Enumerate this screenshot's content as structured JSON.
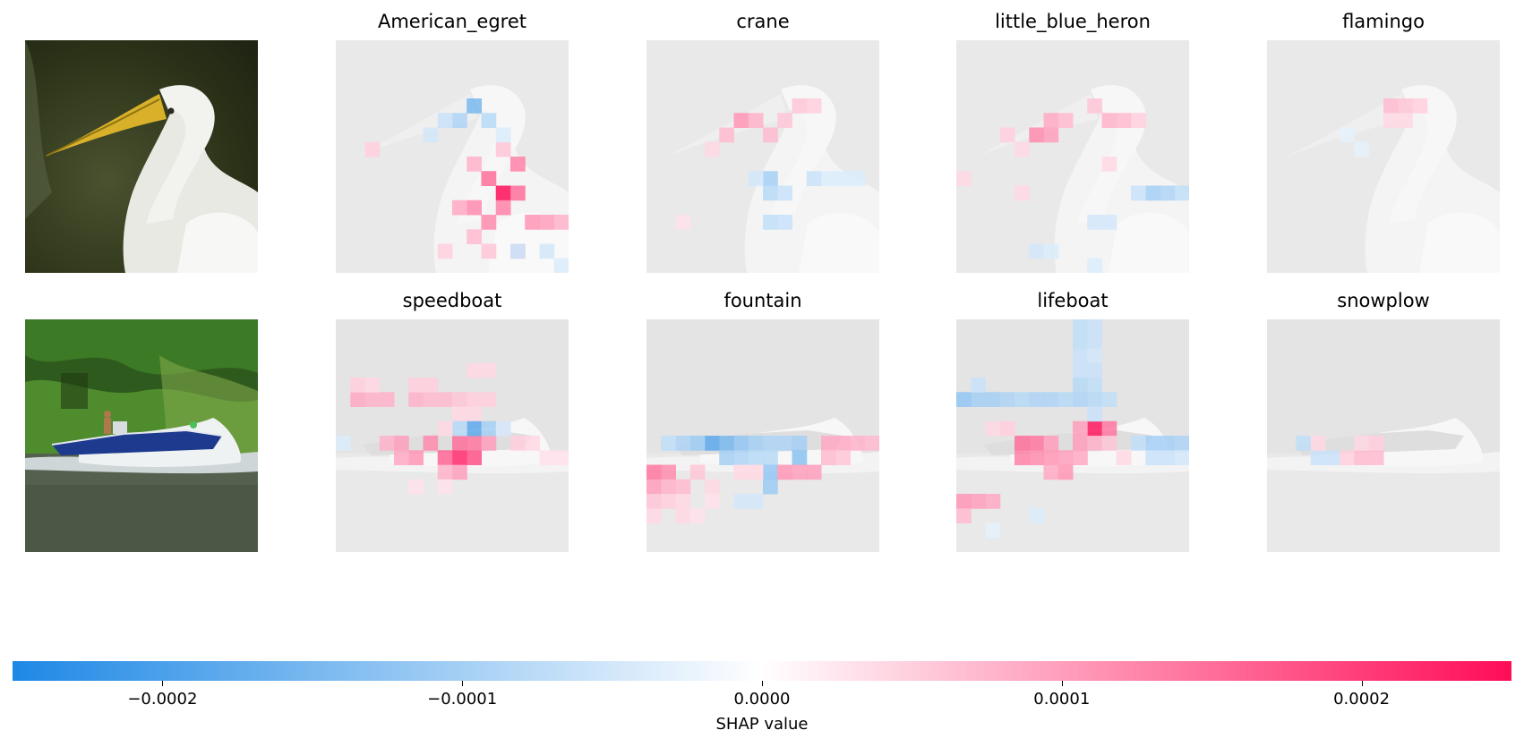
{
  "chart_data": {
    "type": "heatmap",
    "description_rows": [
      {
        "input": "egret photo",
        "classes": [
          "American_egret",
          "crane",
          "little_blue_heron",
          "flamingo"
        ]
      },
      {
        "input": "speedboat photo",
        "classes": [
          "speedboat",
          "fountain",
          "lifeboat",
          "snowplow"
        ]
      }
    ],
    "grid_size": 16,
    "colorbar": {
      "label": "SHAP value",
      "range": [
        -0.00025,
        0.00025
      ],
      "ticks": [
        -0.0002,
        -0.0001,
        0.0,
        0.0001,
        0.0002
      ],
      "tick_labels": [
        "−0.0002",
        "−0.0001",
        "0.0000",
        "0.0001",
        "0.0002"
      ],
      "negative_color": "#1E88E5",
      "positive_color": "#FF0D57"
    },
    "hotspots": {
      "American_egret": [
        [
          11,
          10,
          2.5
        ],
        [
          10,
          9,
          1.5
        ],
        [
          12,
          8,
          1.3
        ],
        [
          9,
          11,
          1.2
        ],
        [
          13,
          12,
          1.1
        ],
        [
          10,
          12,
          1.2
        ],
        [
          11,
          11,
          1.3
        ],
        [
          12,
          10,
          1.5
        ],
        [
          8,
          11,
          0.9
        ],
        [
          14,
          12,
          1.0
        ],
        [
          15,
          12,
          0.8
        ],
        [
          9,
          8,
          0.8
        ],
        [
          11,
          7,
          0.6
        ],
        [
          2,
          7,
          0.5
        ],
        [
          9,
          13,
          0.7
        ],
        [
          10,
          14,
          0.6
        ],
        [
          12,
          14,
          0.6
        ],
        [
          7,
          14,
          0.5
        ],
        [
          9,
          4,
          -1.5
        ],
        [
          8,
          5,
          -0.9
        ],
        [
          10,
          5,
          -0.8
        ],
        [
          7,
          5,
          -0.6
        ],
        [
          6,
          6,
          -0.5
        ],
        [
          11,
          6,
          -0.4
        ],
        [
          12,
          14,
          -0.6
        ],
        [
          14,
          14,
          -0.5
        ],
        [
          15,
          15,
          -0.4
        ]
      ],
      "crane": [
        [
          6,
          5,
          1.1
        ],
        [
          7,
          5,
          0.8
        ],
        [
          5,
          6,
          0.7
        ],
        [
          8,
          6,
          0.7
        ],
        [
          10,
          4,
          0.6
        ],
        [
          11,
          4,
          0.5
        ],
        [
          9,
          5,
          0.6
        ],
        [
          4,
          7,
          0.4
        ],
        [
          8,
          9,
          -1.0
        ],
        [
          8,
          10,
          -0.8
        ],
        [
          9,
          10,
          -0.6
        ],
        [
          8,
          12,
          -0.7
        ],
        [
          9,
          12,
          -0.6
        ],
        [
          7,
          9,
          -0.5
        ],
        [
          11,
          9,
          -0.6
        ],
        [
          12,
          9,
          -0.4
        ],
        [
          14,
          9,
          -0.4
        ],
        [
          13,
          9,
          -0.4
        ],
        [
          2,
          12,
          0.3
        ]
      ],
      "little_blue_heron": [
        [
          5,
          6,
          1.2
        ],
        [
          6,
          6,
          1.0
        ],
        [
          6,
          5,
          0.9
        ],
        [
          7,
          5,
          0.7
        ],
        [
          10,
          5,
          0.8
        ],
        [
          11,
          5,
          0.7
        ],
        [
          9,
          4,
          0.6
        ],
        [
          12,
          5,
          0.5
        ],
        [
          3,
          6,
          0.5
        ],
        [
          4,
          7,
          0.4
        ],
        [
          0,
          9,
          0.4
        ],
        [
          4,
          10,
          0.4
        ],
        [
          13,
          10,
          -1.0
        ],
        [
          14,
          10,
          -0.9
        ],
        [
          15,
          10,
          -0.7
        ],
        [
          12,
          10,
          -0.6
        ],
        [
          9,
          12,
          -0.5
        ],
        [
          10,
          12,
          -0.5
        ],
        [
          5,
          14,
          -0.5
        ],
        [
          6,
          14,
          -0.4
        ],
        [
          9,
          15,
          -0.4
        ],
        [
          10,
          8,
          0.4
        ]
      ],
      "flamingo": [
        [
          8,
          4,
          0.7
        ],
        [
          9,
          4,
          0.6
        ],
        [
          10,
          4,
          0.5
        ],
        [
          8,
          5,
          0.4
        ],
        [
          9,
          5,
          0.4
        ],
        [
          5,
          6,
          -0.3
        ],
        [
          6,
          7,
          -0.3
        ]
      ],
      "speedboat": [
        [
          8,
          9,
          2.2
        ],
        [
          9,
          9,
          1.8
        ],
        [
          7,
          9,
          1.6
        ],
        [
          8,
          8,
          1.5
        ],
        [
          9,
          8,
          1.4
        ],
        [
          6,
          8,
          1.2
        ],
        [
          5,
          9,
          1.1
        ],
        [
          10,
          8,
          1.0
        ],
        [
          4,
          8,
          1.0
        ],
        [
          3,
          8,
          0.8
        ],
        [
          4,
          9,
          0.9
        ],
        [
          1,
          5,
          0.9
        ],
        [
          2,
          5,
          0.8
        ],
        [
          3,
          5,
          0.8
        ],
        [
          5,
          5,
          0.8
        ],
        [
          6,
          5,
          0.7
        ],
        [
          7,
          5,
          0.7
        ],
        [
          8,
          5,
          0.6
        ],
        [
          9,
          5,
          0.5
        ],
        [
          10,
          5,
          0.5
        ],
        [
          5,
          4,
          0.5
        ],
        [
          6,
          4,
          0.5
        ],
        [
          9,
          3,
          0.4
        ],
        [
          10,
          3,
          0.4
        ],
        [
          1,
          4,
          0.5
        ],
        [
          2,
          4,
          0.4
        ],
        [
          8,
          6,
          0.4
        ],
        [
          9,
          6,
          0.4
        ],
        [
          11,
          7,
          0.4
        ],
        [
          12,
          8,
          0.5
        ],
        [
          13,
          8,
          0.4
        ],
        [
          14,
          9,
          0.3
        ],
        [
          15,
          9,
          0.3
        ],
        [
          8,
          10,
          1.0
        ],
        [
          7,
          10,
          0.8
        ],
        [
          9,
          7,
          -1.8
        ],
        [
          10,
          7,
          -1.0
        ],
        [
          8,
          7,
          -0.8
        ],
        [
          11,
          7,
          -0.5
        ],
        [
          0,
          8,
          -0.4
        ],
        [
          7,
          7,
          0.4
        ],
        [
          5,
          11,
          0.3
        ],
        [
          7,
          11,
          0.3
        ]
      ],
      "fountain": [
        [
          4,
          8,
          -1.8
        ],
        [
          5,
          8,
          -1.5
        ],
        [
          6,
          8,
          -1.2
        ],
        [
          3,
          8,
          -1.1
        ],
        [
          2,
          8,
          -0.9
        ],
        [
          1,
          8,
          -0.7
        ],
        [
          7,
          8,
          -1.0
        ],
        [
          8,
          8,
          -0.9
        ],
        [
          9,
          8,
          -0.9
        ],
        [
          10,
          8,
          -1.0
        ],
        [
          5,
          9,
          -1.0
        ],
        [
          6,
          9,
          -0.9
        ],
        [
          7,
          9,
          -0.8
        ],
        [
          8,
          9,
          -0.8
        ],
        [
          8,
          10,
          -1.2
        ],
        [
          8,
          11,
          -1.1
        ],
        [
          10,
          9,
          -1.3
        ],
        [
          6,
          12,
          -0.5
        ],
        [
          7,
          12,
          -0.5
        ],
        [
          0,
          10,
          1.4
        ],
        [
          1,
          10,
          1.2
        ],
        [
          0,
          11,
          1.0
        ],
        [
          1,
          11,
          0.8
        ],
        [
          2,
          11,
          0.7
        ],
        [
          3,
          10,
          0.6
        ],
        [
          9,
          10,
          1.1
        ],
        [
          10,
          10,
          1.0
        ],
        [
          11,
          10,
          1.0
        ],
        [
          12,
          8,
          0.9
        ],
        [
          13,
          8,
          0.9
        ],
        [
          14,
          8,
          0.8
        ],
        [
          15,
          8,
          0.7
        ],
        [
          12,
          9,
          0.7
        ],
        [
          13,
          9,
          0.6
        ],
        [
          0,
          12,
          0.6
        ],
        [
          1,
          12,
          0.5
        ],
        [
          2,
          12,
          0.4
        ],
        [
          0,
          13,
          0.4
        ],
        [
          2,
          13,
          0.4
        ],
        [
          3,
          13,
          0.3
        ],
        [
          6,
          10,
          0.4
        ],
        [
          7,
          10,
          0.4
        ],
        [
          4,
          11,
          0.4
        ],
        [
          4,
          12,
          0.3
        ]
      ],
      "lifeboat": [
        [
          9,
          7,
          2.4
        ],
        [
          10,
          7,
          1.4
        ],
        [
          8,
          7,
          1.0
        ],
        [
          4,
          8,
          1.5
        ],
        [
          5,
          8,
          1.4
        ],
        [
          4,
          9,
          1.3
        ],
        [
          5,
          9,
          1.2
        ],
        [
          6,
          8,
          1.0
        ],
        [
          6,
          9,
          1.1
        ],
        [
          7,
          9,
          1.0
        ],
        [
          7,
          10,
          1.1
        ],
        [
          6,
          10,
          0.9
        ],
        [
          8,
          8,
          1.0
        ],
        [
          8,
          9,
          0.9
        ],
        [
          9,
          8,
          0.8
        ],
        [
          10,
          8,
          0.6
        ],
        [
          0,
          12,
          1.1
        ],
        [
          1,
          12,
          1.0
        ],
        [
          2,
          12,
          0.9
        ],
        [
          0,
          13,
          0.7
        ],
        [
          3,
          7,
          0.5
        ],
        [
          2,
          7,
          0.4
        ],
        [
          11,
          9,
          0.4
        ],
        [
          0,
          5,
          -1.2
        ],
        [
          1,
          5,
          -1.0
        ],
        [
          2,
          5,
          -1.0
        ],
        [
          3,
          5,
          -0.9
        ],
        [
          4,
          5,
          -0.8
        ],
        [
          5,
          5,
          -0.9
        ],
        [
          6,
          5,
          -0.9
        ],
        [
          7,
          5,
          -0.8
        ],
        [
          8,
          5,
          -0.9
        ],
        [
          9,
          5,
          -0.8
        ],
        [
          10,
          5,
          -0.7
        ],
        [
          1,
          4,
          -0.6
        ],
        [
          8,
          0,
          -0.7
        ],
        [
          8,
          1,
          -0.7
        ],
        [
          8,
          2,
          -0.6
        ],
        [
          8,
          3,
          -0.6
        ],
        [
          8,
          4,
          -0.8
        ],
        [
          9,
          0,
          -0.6
        ],
        [
          9,
          1,
          -0.6
        ],
        [
          9,
          2,
          -0.5
        ],
        [
          9,
          3,
          -0.6
        ],
        [
          9,
          4,
          -0.7
        ],
        [
          9,
          6,
          -0.6
        ],
        [
          13,
          8,
          -1.0
        ],
        [
          14,
          8,
          -1.0
        ],
        [
          15,
          8,
          -0.9
        ],
        [
          12,
          8,
          -0.7
        ],
        [
          13,
          9,
          -0.6
        ],
        [
          14,
          9,
          -0.6
        ],
        [
          15,
          9,
          -0.5
        ],
        [
          5,
          13,
          -0.4
        ],
        [
          2,
          14,
          -0.3
        ]
      ],
      "snowplow": [
        [
          2,
          8,
          -0.7
        ],
        [
          3,
          9,
          -0.6
        ],
        [
          4,
          9,
          -0.6
        ],
        [
          5,
          9,
          0.5
        ],
        [
          6,
          9,
          0.7
        ],
        [
          7,
          9,
          0.7
        ],
        [
          6,
          8,
          0.4
        ],
        [
          7,
          8,
          0.5
        ],
        [
          3,
          8,
          0.4
        ]
      ]
    }
  }
}
